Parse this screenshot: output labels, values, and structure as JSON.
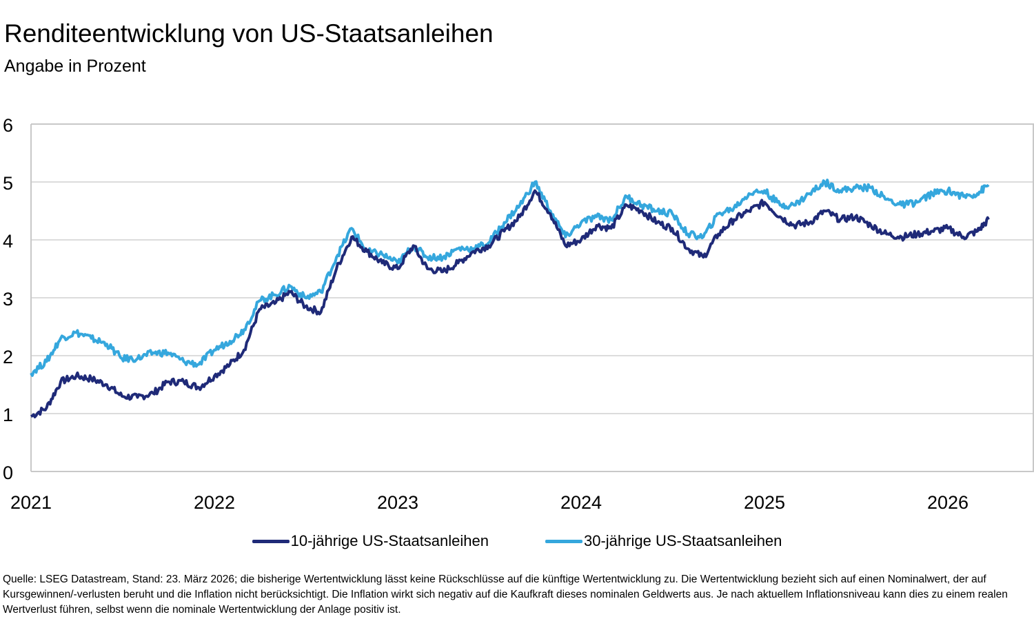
{
  "title": "Renditeentwicklung von US-Staatsanleihen",
  "subtitle": "Angabe in Prozent",
  "footnote": "Quelle: LSEG Datastream, Stand: 23. März 2026; die bisherige Wertentwicklung lässt keine Rückschlüsse auf die künftige Wertentwicklung zu. Die Wertentwicklung bezieht sich auf einen Nominalwert, der auf Kursgewinnen/-verlusten beruht und die Inflation nicht berücksichtigt. Die Inflation wirkt sich negativ auf die Kaufkraft dieses nominalen Geldwerts aus. Je nach aktuellem Inflationsniveau kann dies zu einem realen Wertverlust führen, selbst wenn die nominale Wertentwicklung der Anlage positiv ist.",
  "chart_data": {
    "type": "line",
    "title": "Renditeentwicklung von US-Staatsanleihen",
    "subtitle": "Angabe in Prozent",
    "xlabel": "",
    "ylabel": "",
    "xlim": [
      "2021-01-01",
      "2026-06-15"
    ],
    "ylim": [
      0,
      6
    ],
    "x_ticks": [
      "2021",
      "2022",
      "2023",
      "2024",
      "2025",
      "2026"
    ],
    "y_ticks": [
      "0",
      "1",
      "2",
      "3",
      "4",
      "5",
      "6"
    ],
    "grid": "horizontal",
    "legend": "bottom",
    "x": [
      "2021-01-01",
      "2021-02-01",
      "2021-03-01",
      "2021-04-01",
      "2021-05-01",
      "2021-06-01",
      "2021-07-01",
      "2021-08-01",
      "2021-09-01",
      "2021-10-01",
      "2021-11-01",
      "2021-12-01",
      "2022-01-01",
      "2022-02-01",
      "2022-03-01",
      "2022-04-01",
      "2022-05-01",
      "2022-06-01",
      "2022-07-01",
      "2022-08-01",
      "2022-09-01",
      "2022-10-01",
      "2022-11-01",
      "2022-12-01",
      "2023-01-01",
      "2023-02-01",
      "2023-03-01",
      "2023-04-01",
      "2023-05-01",
      "2023-06-01",
      "2023-07-01",
      "2023-08-01",
      "2023-09-01",
      "2023-10-01",
      "2023-11-01",
      "2023-12-01",
      "2024-01-01",
      "2024-02-01",
      "2024-03-01",
      "2024-04-01",
      "2024-05-01",
      "2024-06-01",
      "2024-07-01",
      "2024-08-01",
      "2024-09-01",
      "2024-10-01",
      "2024-11-01",
      "2024-12-01",
      "2025-01-01",
      "2025-02-01",
      "2025-03-01",
      "2025-04-01",
      "2025-05-01",
      "2025-06-01",
      "2025-07-01",
      "2025-08-01",
      "2025-09-01",
      "2025-10-01",
      "2025-11-01",
      "2025-12-01",
      "2026-01-01",
      "2026-02-01",
      "2026-03-01",
      "2026-03-23"
    ],
    "series": [
      {
        "name": "10-jährige US-Staatsanleihen",
        "color": "#1f2a78",
        "values": [
          0.95,
          1.1,
          1.55,
          1.65,
          1.6,
          1.5,
          1.3,
          1.28,
          1.35,
          1.55,
          1.55,
          1.45,
          1.65,
          1.85,
          2.1,
          2.8,
          2.9,
          3.1,
          2.85,
          2.75,
          3.5,
          4.05,
          3.8,
          3.6,
          3.5,
          3.9,
          3.5,
          3.45,
          3.6,
          3.8,
          3.9,
          4.15,
          4.4,
          4.85,
          4.45,
          3.9,
          4.0,
          4.25,
          4.2,
          4.6,
          4.5,
          4.3,
          4.2,
          3.85,
          3.7,
          4.1,
          4.35,
          4.5,
          4.65,
          4.4,
          4.25,
          4.3,
          4.5,
          4.35,
          4.4,
          4.25,
          4.1,
          4.05,
          4.1,
          4.15,
          4.2,
          4.05,
          4.15,
          4.35
        ]
      },
      {
        "name": "30-jährige US-Staatsanleihen",
        "color": "#35a7dd",
        "values": [
          1.7,
          1.9,
          2.3,
          2.4,
          2.3,
          2.2,
          1.95,
          1.95,
          2.05,
          2.05,
          1.9,
          1.85,
          2.1,
          2.25,
          2.45,
          2.95,
          3.05,
          3.2,
          3.0,
          3.1,
          3.7,
          4.2,
          3.8,
          3.75,
          3.6,
          3.9,
          3.7,
          3.7,
          3.85,
          3.85,
          3.95,
          4.3,
          4.6,
          5.0,
          4.5,
          4.05,
          4.3,
          4.4,
          4.35,
          4.75,
          4.6,
          4.5,
          4.45,
          4.1,
          4.05,
          4.45,
          4.55,
          4.8,
          4.85,
          4.6,
          4.6,
          4.8,
          5.0,
          4.85,
          4.9,
          4.9,
          4.7,
          4.6,
          4.65,
          4.8,
          4.85,
          4.75,
          4.8,
          4.95
        ]
      }
    ]
  }
}
